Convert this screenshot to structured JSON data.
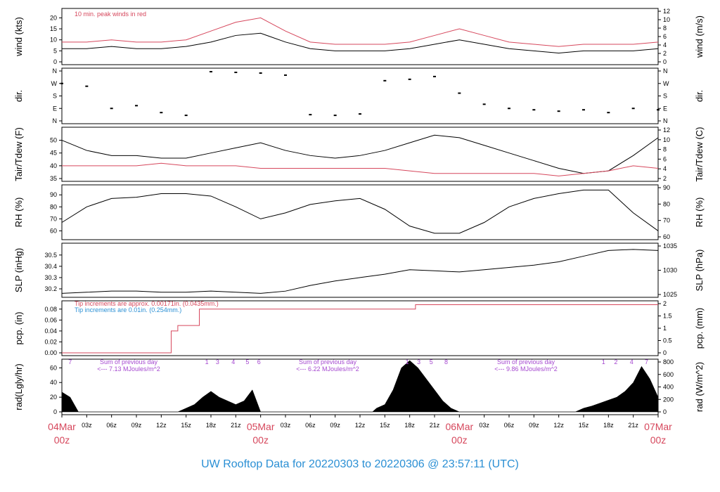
{
  "title": "UW Rooftop Data for 20220303  to  20220306 @ 23:57:11  (UTC)",
  "colors": {
    "black": "#000000",
    "red": "#d6475c",
    "blue": "#2a8fd4",
    "purple": "#a64ad0"
  },
  "x_axis": {
    "hour_ticks": [
      "03z",
      "06z",
      "09z",
      "12z",
      "15z",
      "18z",
      "21z"
    ],
    "date_labels": [
      {
        "date": "04Mar",
        "hour": "00z"
      },
      {
        "date": "05Mar",
        "hour": "00z"
      },
      {
        "date": "06Mar",
        "hour": "00z"
      },
      {
        "date": "07Mar",
        "hour": "00z"
      }
    ]
  },
  "chart_data": [
    {
      "type": "line",
      "name": "wind",
      "ylabel_left": "wind (kts)",
      "ylabel_right": "wind (m/s)",
      "left_ticks": [
        "0",
        "5",
        "10",
        "15",
        "20"
      ],
      "right_ticks": [
        "0",
        "2",
        "4",
        "6",
        "8",
        "10",
        "12"
      ],
      "ylim": [
        0,
        23
      ],
      "annotation": "10 min. peak winds in red",
      "series": [
        {
          "color": "black",
          "x": [
            0,
            3,
            6,
            9,
            12,
            15,
            18,
            21,
            24,
            27,
            30,
            33,
            36,
            39,
            42,
            45,
            48,
            51,
            54,
            57,
            60,
            63,
            66,
            69,
            72
          ],
          "values": [
            6,
            6,
            7,
            6,
            6,
            7,
            9,
            12,
            13,
            9,
            6,
            5,
            5,
            5,
            6,
            8,
            10,
            8,
            6,
            5,
            4,
            5,
            5,
            5,
            6
          ]
        },
        {
          "color": "red",
          "x": [
            0,
            3,
            6,
            9,
            12,
            15,
            18,
            21,
            24,
            27,
            30,
            33,
            36,
            39,
            42,
            45,
            48,
            51,
            54,
            57,
            60,
            63,
            66,
            69,
            72
          ],
          "values": [
            9,
            9,
            10,
            9,
            9,
            10,
            14,
            18,
            20,
            14,
            9,
            8,
            8,
            8,
            9,
            12,
            15,
            12,
            9,
            8,
            7,
            8,
            8,
            8,
            9
          ]
        }
      ]
    },
    {
      "type": "scatter",
      "name": "dir",
      "ylabel_left": "dir.",
      "ylabel_right": "dir.",
      "left_ticks": [
        "N",
        "E",
        "S",
        "W",
        "N"
      ],
      "right_ticks": [
        "N",
        "E",
        "S",
        "W",
        "N"
      ],
      "ylim": [
        0,
        360
      ],
      "series": [
        {
          "color": "black",
          "x": [
            0,
            3,
            6,
            9,
            12,
            15,
            18,
            21,
            24,
            27,
            30,
            33,
            36,
            39,
            42,
            45,
            48,
            51,
            54,
            57,
            60,
            63,
            66,
            69,
            72
          ],
          "values": [
            270,
            250,
            90,
            110,
            60,
            40,
            355,
            350,
            345,
            330,
            45,
            40,
            50,
            290,
            300,
            320,
            200,
            120,
            90,
            80,
            70,
            80,
            60,
            90,
            80
          ]
        }
      ]
    },
    {
      "type": "line",
      "name": "temperature",
      "ylabel_left": "Tair/Tdew (F)",
      "ylabel_right": "Tair/Tdew (C)",
      "left_ticks": [
        "35",
        "40",
        "45",
        "50"
      ],
      "right_ticks": [
        "2",
        "4",
        "6",
        "8",
        "10",
        "12"
      ],
      "ylim": [
        35,
        54
      ],
      "series": [
        {
          "color": "black",
          "x": [
            0,
            3,
            6,
            9,
            12,
            15,
            18,
            21,
            24,
            27,
            30,
            33,
            36,
            39,
            42,
            45,
            48,
            51,
            54,
            57,
            60,
            63,
            66,
            69,
            72
          ],
          "values": [
            50,
            46,
            44,
            44,
            43,
            43,
            45,
            47,
            49,
            46,
            44,
            43,
            44,
            46,
            49,
            52,
            51,
            48,
            45,
            42,
            39,
            37,
            38,
            44,
            51
          ]
        },
        {
          "color": "red",
          "x": [
            0,
            3,
            6,
            9,
            12,
            15,
            18,
            21,
            24,
            27,
            30,
            33,
            36,
            39,
            42,
            45,
            48,
            51,
            54,
            57,
            60,
            63,
            66,
            69,
            72
          ],
          "values": [
            40,
            40,
            40,
            40,
            41,
            40,
            40,
            40,
            39,
            39,
            39,
            39,
            39,
            39,
            38,
            37,
            37,
            37,
            37,
            37,
            36,
            37,
            38,
            40,
            39
          ]
        }
      ]
    },
    {
      "type": "line",
      "name": "rh",
      "ylabel_left": "RH (%)",
      "ylabel_right": "RH (%)",
      "left_ticks": [
        "60",
        "70",
        "80",
        "90"
      ],
      "right_ticks": [
        "60",
        "70",
        "80",
        "90"
      ],
      "ylim": [
        55,
        96
      ],
      "series": [
        {
          "color": "black",
          "x": [
            0,
            3,
            6,
            9,
            12,
            15,
            18,
            21,
            24,
            27,
            30,
            33,
            36,
            39,
            42,
            45,
            48,
            51,
            54,
            57,
            60,
            63,
            66,
            69,
            72
          ],
          "values": [
            67,
            80,
            87,
            88,
            91,
            91,
            89,
            80,
            70,
            75,
            82,
            85,
            87,
            78,
            64,
            58,
            58,
            67,
            80,
            87,
            91,
            94,
            94,
            75,
            60
          ]
        }
      ]
    },
    {
      "type": "line",
      "name": "slp",
      "ylabel_left": "SLP (inHg)",
      "ylabel_right": "SLP (hPa)",
      "left_ticks": [
        "30.2",
        "30.3",
        "30.4",
        "30.5"
      ],
      "right_ticks": [
        "1025",
        "1030",
        "1035"
      ],
      "ylim": [
        30.15,
        30.58
      ],
      "series": [
        {
          "color": "black",
          "x": [
            0,
            3,
            6,
            9,
            12,
            15,
            18,
            21,
            24,
            27,
            30,
            33,
            36,
            39,
            42,
            45,
            48,
            51,
            54,
            57,
            60,
            63,
            66,
            69,
            72
          ],
          "values": [
            30.16,
            30.17,
            30.18,
            30.18,
            30.17,
            30.17,
            30.18,
            30.17,
            30.16,
            30.18,
            30.23,
            30.27,
            30.3,
            30.33,
            30.37,
            30.36,
            30.35,
            30.37,
            30.39,
            30.41,
            30.44,
            30.49,
            30.54,
            30.55,
            30.54
          ]
        }
      ]
    },
    {
      "type": "line",
      "name": "pcp",
      "ylabel_left": "pcp. (in)",
      "ylabel_right": "pcp. (mm)",
      "left_ticks": [
        "0.00",
        "0.02",
        "0.04",
        "0.06",
        "0.08"
      ],
      "right_ticks": [
        "0",
        "0.5",
        "1",
        "1.5",
        "2"
      ],
      "ylim": [
        0,
        0.09
      ],
      "annotations": [
        {
          "text": "Tip increments are approx. 0.00171in. (0.0435mm.)",
          "color": "red"
        },
        {
          "text": "Tip increments are 0.01in. (0.254mm.)",
          "color": "blue"
        }
      ],
      "series": [
        {
          "color": "red",
          "x": [
            0,
            13.2,
            13.2,
            14,
            14,
            16.6,
            16.6,
            42.7,
            42.7,
            72
          ],
          "values": [
            0,
            0,
            0.04,
            0.04,
            0.05,
            0.05,
            0.08,
            0.08,
            0.088,
            0.088
          ]
        }
      ]
    },
    {
      "type": "area",
      "name": "radiation",
      "ylabel_left": "rad(Lgly/hr)",
      "ylabel_right": "rad (W/m^2)",
      "left_ticks": [
        "0",
        "20",
        "40",
        "60"
      ],
      "right_ticks": [
        "0",
        "200",
        "400",
        "600",
        "800"
      ],
      "ylim": [
        0,
        68
      ],
      "day_sums": [
        {
          "line1": "Sum of previous day",
          "line2": "<--- 7.13 MJoules/m^2"
        },
        {
          "line1": "Sum of previous day",
          "line2": "<--- 6.22 MJoules/m^2"
        },
        {
          "line1": "Sum of previous day",
          "line2": "<--- 9.86 MJoules/m^2"
        }
      ],
      "top_labels": [
        "7",
        "1",
        "3",
        "4",
        "5",
        "6",
        "1",
        "3",
        "5",
        "8",
        "1",
        "2",
        "4",
        "7"
      ],
      "series": [
        {
          "color": "black",
          "x": [
            0,
            1,
            2,
            14,
            15,
            16,
            17,
            18,
            19,
            20,
            21,
            22,
            23,
            24,
            37.5,
            38,
            39,
            40,
            41,
            42,
            43,
            44,
            45,
            46,
            47,
            48,
            62,
            63,
            64,
            65,
            66,
            67,
            68,
            69,
            70,
            71,
            72
          ],
          "values": [
            27,
            20,
            0,
            0,
            5,
            10,
            20,
            28,
            20,
            15,
            10,
            15,
            30,
            0,
            0,
            5,
            10,
            30,
            60,
            70,
            60,
            45,
            30,
            15,
            5,
            0,
            0,
            5,
            8,
            12,
            16,
            20,
            28,
            40,
            62,
            45,
            20
          ]
        }
      ]
    }
  ]
}
